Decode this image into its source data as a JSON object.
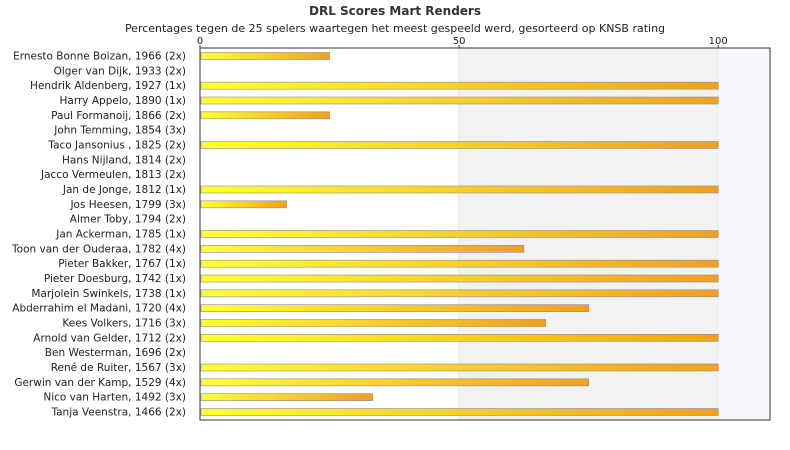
{
  "chart_data": {
    "type": "bar",
    "orientation": "horizontal",
    "title": "DRL Scores Mart Renders",
    "subtitle": "Percentages tegen de 25 spelers waartegen het meest gespeeld werd, gesorteerd op KNSB rating",
    "xlim": [
      0,
      110
    ],
    "xticks": [
      0,
      50,
      100
    ],
    "grid": false,
    "bar_color_start": "#ffff33",
    "bar_color_end": "#f0a020",
    "band_color": "#f2f2f2",
    "categories": [
      "Ernesto Bonne Boizan, 1966 (2x)",
      "Olger van Dijk, 1933 (2x)",
      "Hendrik Aldenberg, 1927 (1x)",
      "Harry Appelo, 1890 (1x)",
      "Paul Formanoij, 1866 (2x)",
      "John Temming, 1854 (3x)",
      "Taco Jansonius , 1825 (2x)",
      "Hans Nijland, 1814 (2x)",
      "Jacco Vermeulen, 1813 (2x)",
      "Jan de Jonge, 1812 (1x)",
      "Jos Heesen, 1799 (3x)",
      "Almer Toby, 1794 (2x)",
      "Jan Ackerman, 1785 (1x)",
      "Toon van der Ouderaa, 1782 (4x)",
      "Pieter Bakker, 1767 (1x)",
      "Pieter Doesburg, 1742 (1x)",
      "Marjolein Swinkels, 1738 (1x)",
      "Abderrahim el Madani, 1720 (4x)",
      "Kees Volkers, 1716 (3x)",
      "Arnold van Gelder, 1712 (2x)",
      "Ben Westerman, 1696 (2x)",
      "René de Ruiter, 1567 (3x)",
      "Gerwin van der Kamp, 1529 (4x)",
      "Nico van Harten, 1492 (3x)",
      "Tanja Veenstra, 1466 (2x)"
    ],
    "values": [
      25,
      0,
      100,
      100,
      25,
      0,
      100,
      0,
      0,
      100,
      16.7,
      0,
      100,
      62.5,
      100,
      100,
      100,
      75,
      66.7,
      100,
      0,
      100,
      75,
      33.3,
      100
    ]
  }
}
